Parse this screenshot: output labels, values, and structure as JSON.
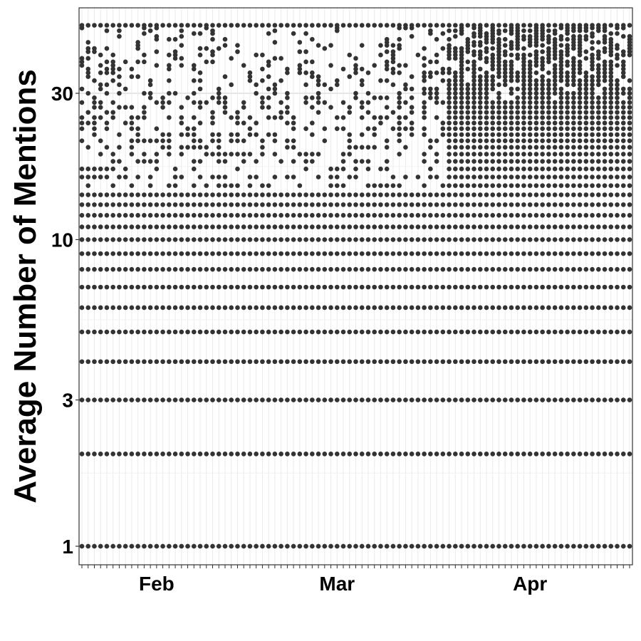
{
  "chart_data": {
    "type": "scatter",
    "title": "",
    "xlabel": "",
    "ylabel": "Average Number of Mentions",
    "x_axis": {
      "type": "date",
      "range": [
        "2020-01-20",
        "2020-04-17"
      ],
      "ticks": [
        {
          "date": "2020-02-01",
          "label": "Feb"
        },
        {
          "date": "2020-03-01",
          "label": "Mar"
        },
        {
          "date": "2020-04-01",
          "label": "Apr"
        }
      ],
      "minor_ticks": "daily"
    },
    "y_axis": {
      "scale": "log10",
      "range": [
        0.87,
        57
      ],
      "ticks": [
        {
          "value": 1,
          "label": "1"
        },
        {
          "value": 3,
          "label": "3"
        },
        {
          "value": 10,
          "label": "10"
        },
        {
          "value": 30,
          "label": "30"
        }
      ]
    },
    "grid": true,
    "legend": "none",
    "point_color": "#333333",
    "series": [
      {
        "full_rows": [
          1,
          2,
          3,
          4,
          5,
          6,
          7,
          8,
          9,
          10,
          11,
          12,
          13
        ],
        "sparse_values": [
          14,
          15,
          16,
          17,
          18,
          19,
          20,
          21,
          22,
          23,
          24,
          25,
          26,
          27,
          28,
          29,
          30,
          31,
          32,
          33,
          34,
          35,
          36,
          37,
          38,
          39,
          40,
          41,
          42,
          43,
          44,
          45,
          46,
          47,
          48,
          49,
          50
        ],
        "max_value": 50,
        "phases": [
          {
            "start": "2020-01-20",
            "end": "2020-03-18",
            "dense_upto": 14,
            "lower_prob": 0.45,
            "upper_prob": 0.1
          },
          {
            "start": "2020-03-19",
            "end": "2020-04-17",
            "dense_upto": 28,
            "lower_prob": 0.9,
            "upper_prob": 0.6
          }
        ]
      }
    ]
  }
}
